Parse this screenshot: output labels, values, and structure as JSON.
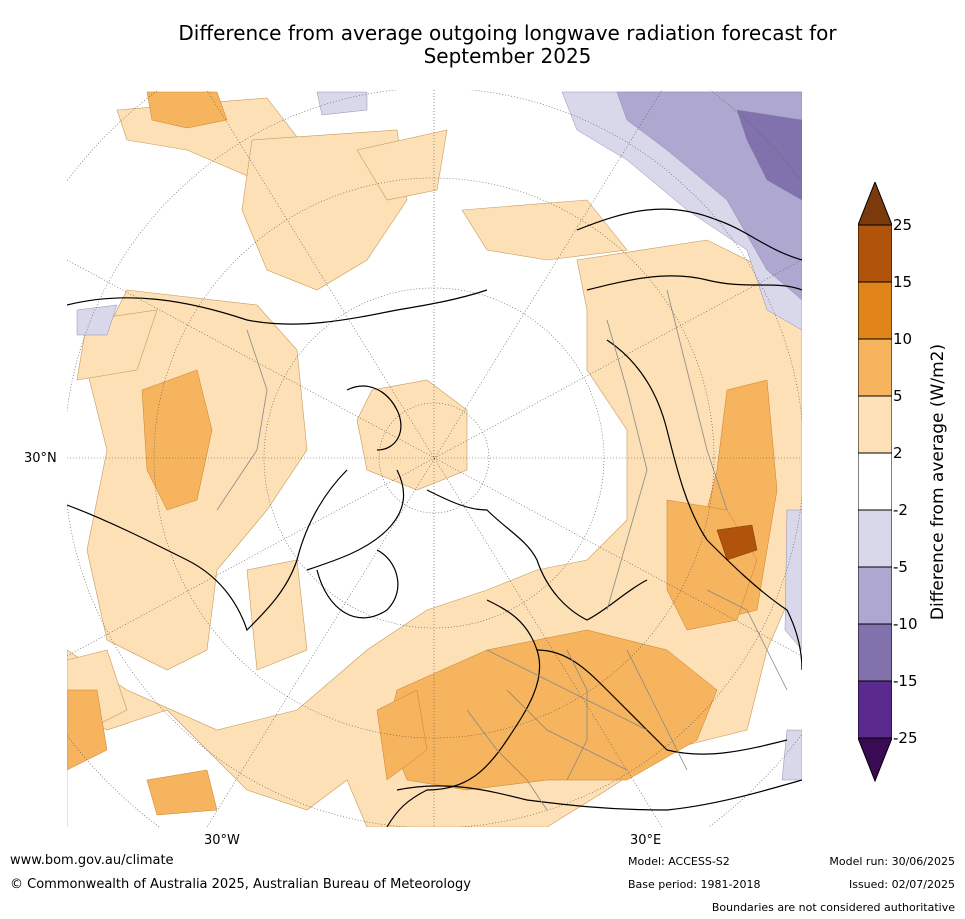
{
  "title_line1": "Difference from average outgoing longwave radiation forecast for",
  "title_line2": "September 2025",
  "map": {
    "lat_label": "30°N",
    "lon_labels": [
      "30°W",
      "30°E"
    ]
  },
  "colorbar": {
    "label": "Difference from average (W/m2)",
    "ticks": [
      "25",
      "15",
      "10",
      "5",
      "2",
      "-2",
      "-5",
      "-10",
      "-15",
      "-25"
    ],
    "colors": {
      "above_25": "#7a3a0c",
      "15_25": "#b0540c",
      "10_15": "#e0841a",
      "5_10": "#f6b45e",
      "2_5": "#fde0b5",
      "-2_2": "#ffffff",
      "-5_-2": "#d8d8ea",
      "-10_-5": "#aea8d0",
      "-15_-10": "#8172ad",
      "-25_-15": "#5a2a8e",
      "below_-25": "#3a0a55"
    }
  },
  "footer": {
    "url": "www.bom.gov.au/climate",
    "copyright": "© Commonwealth of Australia 2025, Australian Bureau of Meteorology",
    "model": "Model: ACCESS-S2",
    "base_period": "Base period: 1981-2018",
    "model_run": "Model run: 30/06/2025",
    "issued": "Issued: 02/07/2025",
    "disclaimer": "Boundaries are not considered authoritative"
  }
}
